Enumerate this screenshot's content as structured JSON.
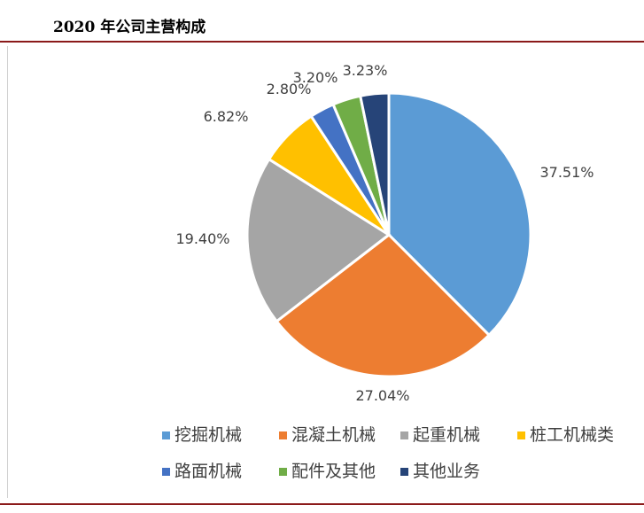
{
  "title": "2020 年公司主营构成",
  "chart_data": {
    "type": "pie",
    "start_angle_deg": 0,
    "direction": "clockwise",
    "legend_position": "bottom",
    "slices": [
      {
        "label": "挖掘机械",
        "value": 37.51,
        "display": "37.51%",
        "color": "#5B9BD5"
      },
      {
        "label": "混凝土机械",
        "value": 27.04,
        "display": "27.04%",
        "color": "#ED7D31"
      },
      {
        "label": "起重机械",
        "value": 19.4,
        "display": "19.40%",
        "color": "#A5A5A5"
      },
      {
        "label": "桩工机械类",
        "value": 6.82,
        "display": "6.82%",
        "color": "#FFC000"
      },
      {
        "label": "路面机械",
        "value": 2.8,
        "display": "2.80%",
        "color": "#4472C4"
      },
      {
        "label": "配件及其他",
        "value": 3.2,
        "display": "3.20%",
        "color": "#70AD47"
      },
      {
        "label": "其他业务",
        "value": 3.23,
        "display": "3.23%",
        "color": "#264478"
      }
    ]
  }
}
